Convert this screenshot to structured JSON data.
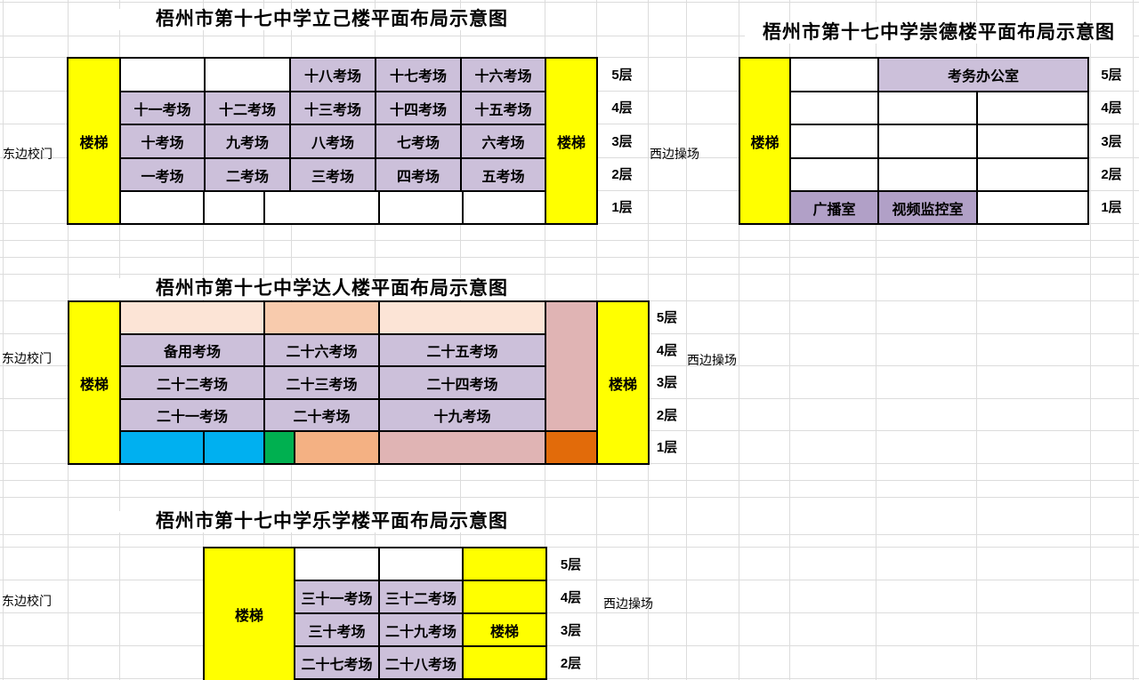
{
  "buildings": {
    "liji": {
      "title": "梧州市第十七中学立己楼平面布局示意图",
      "floors": {
        "f5": [
          "",
          "",
          "十八考场",
          "十七考场",
          "十六考场"
        ],
        "f4": [
          "十一考场",
          "十二考场",
          "十三考场",
          "十四考场",
          "十五考场"
        ],
        "f3": [
          "十考场",
          "九考场",
          "八考场",
          "七考场",
          "六考场"
        ],
        "f2": [
          "一考场",
          "二考场",
          "三考场",
          "四考场",
          "五考场"
        ]
      }
    },
    "chongde": {
      "title": "梧州市第十七中学崇德楼平面布局示意图",
      "rooms": {
        "exam_office": "考务办公室",
        "broadcast": "广播室",
        "video": "视频监控室"
      }
    },
    "daren": {
      "title": "梧州市第十七中学达人楼平面布局示意图",
      "floors": {
        "f4": [
          "备用考场",
          "二十六考场",
          "二十五考场"
        ],
        "f3": [
          "二十二考场",
          "二十三考场",
          "二十四考场"
        ],
        "f2": [
          "二十一考场",
          "二十考场",
          "十九考场"
        ]
      }
    },
    "lexue": {
      "title": "梧州市第十七中学乐学楼平面布局示意图",
      "floors": {
        "f4": [
          "三十一考场",
          "三十二考场"
        ],
        "f3": [
          "三十考场",
          "二十九考场"
        ],
        "f2": [
          "二十七考场",
          "二十八考场"
        ]
      }
    }
  },
  "labels": {
    "stairs": "楼梯",
    "east_gate": "东边校门",
    "west_playground": "西边操场",
    "floor_5": "5层",
    "floor_4": "4层",
    "floor_3": "3层",
    "floor_2": "2层",
    "floor_1": "1层"
  },
  "colors": {
    "stair_yellow": "#FFFF00",
    "exam_purple": "#CCC0DA",
    "room_purple": "#B1A0C7",
    "peach_light": "#FCE4D6",
    "peach": "#F8CBAD",
    "apricot": "#F4B183",
    "rose": "#E0B4B4",
    "blue": "#00B0F0",
    "green": "#00B050",
    "dark_orange": "#E26B0A",
    "gridline": "#dcdcdc"
  }
}
